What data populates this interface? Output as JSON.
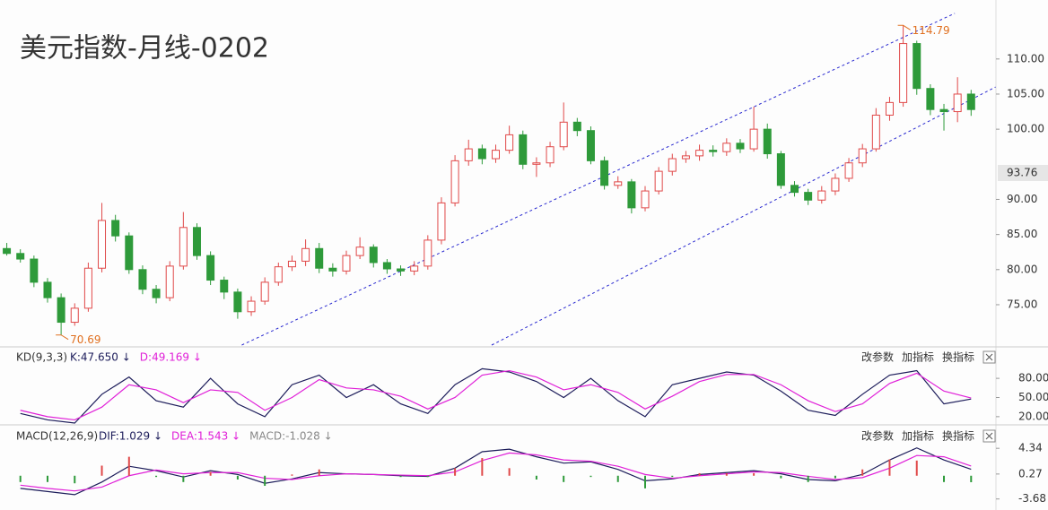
{
  "chart_data": [
    {
      "type": "candlestick",
      "title": "美元指数-月线-0202",
      "open": [
        83.0,
        82.3,
        81.5,
        78.2,
        76.0,
        72.5,
        74.5,
        80.2,
        87.0,
        84.8,
        80.0,
        77.2,
        76.0,
        80.5,
        86.0,
        82.0,
        78.5,
        76.8,
        74.0,
        75.5,
        78.2,
        80.4,
        81.2,
        83.0,
        80.2,
        79.8,
        82.0,
        83.2,
        81.0,
        80.1,
        79.8,
        80.5,
        84.2,
        89.5,
        95.5,
        97.2,
        95.8,
        97.0,
        99.2,
        95.0,
        95.2,
        97.5,
        101.0,
        99.8,
        95.5,
        92.0,
        92.5,
        88.8,
        91.2,
        94.0,
        95.8,
        96.2,
        97.0,
        96.8,
        98.0,
        97.2,
        100.0,
        96.5,
        92.0,
        91.0,
        89.9,
        91.2,
        93.0,
        95.2,
        97.2,
        102.0,
        103.8,
        112.2,
        105.8,
        102.8,
        102.5,
        105.0
      ],
      "high": [
        83.8,
        82.9,
        82.0,
        78.8,
        76.6,
        75.2,
        81.0,
        89.5,
        87.8,
        85.3,
        80.6,
        77.8,
        81.2,
        88.2,
        86.6,
        82.6,
        79.0,
        77.3,
        76.2,
        78.9,
        81.0,
        82.0,
        84.3,
        83.8,
        80.9,
        82.7,
        84.6,
        83.6,
        81.5,
        80.6,
        81.2,
        84.9,
        90.3,
        96.3,
        98.5,
        97.8,
        97.8,
        100.5,
        99.8,
        96.0,
        98.2,
        103.8,
        101.6,
        100.4,
        96.1,
        93.3,
        92.9,
        91.9,
        94.6,
        96.5,
        96.9,
        97.8,
        97.7,
        98.7,
        98.6,
        103.2,
        100.8,
        96.9,
        92.6,
        91.5,
        91.9,
        93.7,
        95.9,
        97.9,
        103.0,
        104.6,
        114.79,
        112.6,
        106.4,
        103.6,
        107.4,
        105.6
      ],
      "low": [
        82.0,
        81.0,
        77.5,
        75.3,
        70.69,
        72.0,
        74.0,
        79.6,
        84.0,
        79.4,
        76.5,
        75.2,
        75.5,
        80.0,
        81.4,
        77.8,
        75.8,
        73.0,
        73.4,
        75.0,
        77.7,
        79.8,
        80.5,
        79.5,
        79.0,
        79.3,
        81.5,
        80.3,
        79.4,
        79.1,
        79.2,
        80.0,
        83.6,
        89.0,
        94.8,
        95.0,
        95.2,
        96.5,
        94.3,
        93.2,
        94.6,
        97.0,
        99.0,
        95.0,
        91.4,
        91.5,
        88.0,
        88.3,
        90.7,
        93.4,
        95.2,
        95.5,
        96.1,
        96.2,
        96.6,
        96.8,
        95.8,
        91.5,
        90.4,
        89.2,
        89.4,
        90.6,
        92.5,
        94.6,
        96.8,
        101.2,
        103.2,
        104.9,
        102.0,
        99.8,
        101.0,
        101.9
      ],
      "close": [
        82.3,
        81.5,
        78.2,
        76.0,
        72.5,
        74.5,
        80.2,
        87.0,
        84.8,
        80.0,
        77.2,
        76.0,
        80.5,
        86.0,
        82.0,
        78.5,
        76.8,
        74.0,
        75.5,
        78.2,
        80.4,
        81.2,
        83.0,
        80.2,
        79.8,
        82.0,
        83.2,
        81.0,
        80.1,
        79.8,
        80.5,
        84.2,
        89.5,
        95.5,
        97.2,
        95.8,
        97.0,
        99.2,
        95.0,
        95.2,
        97.5,
        101.0,
        99.8,
        95.5,
        92.0,
        92.5,
        88.8,
        91.2,
        94.0,
        95.8,
        96.2,
        97.0,
        96.8,
        98.0,
        97.2,
        100.0,
        96.5,
        92.0,
        91.0,
        89.9,
        91.2,
        93.0,
        95.2,
        97.2,
        102.0,
        103.8,
        112.2,
        105.8,
        102.8,
        102.5,
        105.0,
        102.8
      ],
      "up_color": "#e04848",
      "down_color": "#2e9a3a",
      "xlim": [
        -0.5,
        72.5
      ],
      "ylim": [
        69.25,
        118.4
      ],
      "yticks": [
        {
          "value": 75,
          "label": "75.00"
        },
        {
          "value": 80,
          "label": "80.00"
        },
        {
          "value": 85,
          "label": "85.00"
        },
        {
          "value": 90,
          "label": "90.00"
        },
        {
          "value": 100,
          "label": "100.00"
        },
        {
          "value": 105,
          "label": "105.00"
        },
        {
          "value": 110,
          "label": "110.00"
        }
      ],
      "current_price": 93.76,
      "annotations": [
        {
          "label": "114.79",
          "value": 114.79,
          "x": 66
        },
        {
          "label": "70.69",
          "value": 70.69,
          "x": 4
        }
      ],
      "annotation_color": "#e07020",
      "trendlines": [
        {
          "x": [
            17.3,
            69.8
          ],
          "y": [
            69.25,
            116.5
          ]
        },
        {
          "x": [
            35.7,
            72.8
          ],
          "y": [
            69.25,
            106.0
          ]
        }
      ],
      "trendline_color": "#2a2ad0"
    },
    {
      "type": "line",
      "title": "KD(9,3,3)",
      "buttons": [
        "改参数",
        "加指标",
        "换指标"
      ],
      "ylim": [
        10,
        104
      ],
      "yticks": [
        {
          "value": 80,
          "label": "80.00"
        },
        {
          "value": 50,
          "label": "50.00"
        },
        {
          "value": 20,
          "label": "20.00"
        }
      ],
      "series": [
        {
          "name": "K:47.650 ↓",
          "color": "#1c1c5a",
          "values": [
            25,
            15,
            10,
            55,
            82,
            45,
            35,
            80,
            40,
            20,
            70,
            85,
            50,
            70,
            40,
            25,
            70,
            95,
            90,
            75,
            50,
            80,
            45,
            20,
            70,
            80,
            90,
            85,
            60,
            30,
            22,
            55,
            85,
            92,
            40,
            47.65
          ]
        },
        {
          "name": "D:49.169 ↓",
          "color": "#e020d8",
          "values": [
            30,
            20,
            15,
            35,
            70,
            62,
            42,
            62,
            58,
            30,
            50,
            78,
            65,
            62,
            52,
            32,
            50,
            85,
            92,
            82,
            62,
            70,
            58,
            32,
            52,
            75,
            86,
            86,
            70,
            45,
            28,
            40,
            72,
            88,
            60,
            49.169
          ]
        }
      ]
    },
    {
      "type": "line",
      "title": "MACD(12,26,9)",
      "buttons": [
        "改参数",
        "加指标",
        "换指标"
      ],
      "ylim": [
        -5,
        5.5
      ],
      "yticks": [
        4.34,
        0.27,
        -3.68
      ],
      "series": [
        {
          "name": "DIF:1.029 ↓",
          "color": "#1c1c5a",
          "values": [
            -2.0,
            -2.5,
            -3.0,
            -1.0,
            1.5,
            0.8,
            -0.2,
            0.8,
            0.2,
            -1.2,
            -0.5,
            0.5,
            0.3,
            0.2,
            0.0,
            -0.1,
            1.2,
            3.8,
            4.2,
            3.0,
            2.0,
            2.2,
            1.0,
            -0.8,
            -0.5,
            0.2,
            0.5,
            0.8,
            0.3,
            -0.6,
            -0.8,
            0.2,
            2.5,
            4.4,
            2.5,
            1.029
          ]
        },
        {
          "name": "DEA:1.543 ↓",
          "color": "#e020d8",
          "values": [
            -1.5,
            -2.0,
            -2.4,
            -1.8,
            0.0,
            0.9,
            0.3,
            0.5,
            0.5,
            -0.4,
            -0.6,
            0.0,
            0.3,
            0.2,
            0.1,
            0.0,
            0.6,
            2.4,
            3.6,
            3.3,
            2.5,
            2.3,
            1.5,
            0.2,
            -0.4,
            0.0,
            0.3,
            0.6,
            0.5,
            -0.1,
            -0.6,
            -0.3,
            1.2,
            3.2,
            3.0,
            1.543
          ]
        },
        {
          "name": "MACD:-1.028 ↓",
          "color": "#888888",
          "style": "bar",
          "up_color": "#e04848",
          "down_color": "#2e9a3a",
          "values": [
            -1.0,
            -1.0,
            -1.2,
            1.6,
            3.0,
            -0.2,
            -1.0,
            0.6,
            -0.6,
            -1.6,
            0.2,
            1.0,
            0.0,
            0.0,
            -0.2,
            -0.2,
            1.2,
            2.8,
            1.2,
            -0.6,
            -1.0,
            -0.2,
            -1.0,
            -2.0,
            -0.2,
            0.4,
            0.4,
            0.4,
            -0.4,
            -1.0,
            -0.4,
            1.0,
            2.6,
            2.4,
            -1.0,
            -1.028
          ]
        }
      ]
    }
  ]
}
